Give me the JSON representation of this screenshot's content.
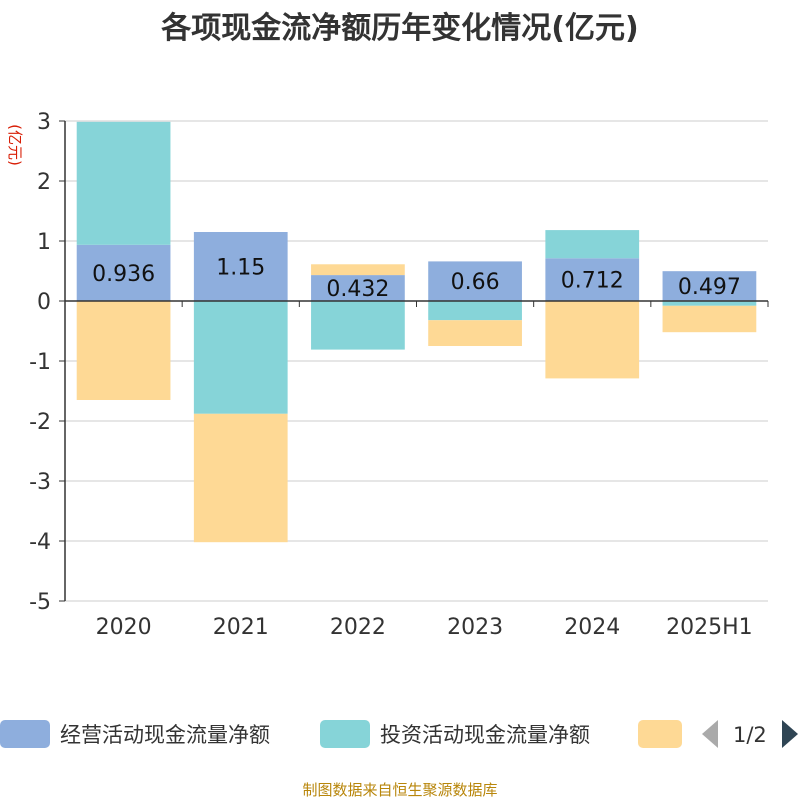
{
  "chart_data": {
    "type": "bar",
    "stacked": true,
    "title": "各项现金流净额历年变化情况(亿元)",
    "y_unit": "(亿元)",
    "categories": [
      "2020",
      "2021",
      "2022",
      "2023",
      "2024",
      "2025H1"
    ],
    "ylim": [
      -5,
      3
    ],
    "y_ticks": [
      3,
      2,
      1,
      0,
      -1,
      -2,
      -3,
      -4,
      -5
    ],
    "grid": true,
    "legend_position": "bottom",
    "series": [
      {
        "name": "经营活动现金流量净额",
        "color": "#8eaedd",
        "values": [
          0.936,
          1.15,
          0.432,
          0.66,
          0.712,
          0.497
        ],
        "labels": [
          "0.936",
          "1.15",
          "0.432",
          "0.66",
          "0.712",
          "0.497"
        ]
      },
      {
        "name": "投资活动现金流量净额",
        "color": "#86d4d8",
        "values": [
          2.05,
          -1.88,
          -0.81,
          -0.32,
          0.47,
          -0.08
        ]
      },
      {
        "name": "",
        "color": "#fed995",
        "values": [
          -1.65,
          -2.14,
          0.18,
          -0.43,
          -1.29,
          -0.44
        ]
      }
    ]
  },
  "legend": {
    "page_indicator": "1/2"
  },
  "source": "制图数据来自恒生聚源数据库",
  "colors": {
    "axis": "#333333",
    "grid": "#cccccc",
    "unit": "#d81e06",
    "source": "#b8860b",
    "arrow_active": "#2f4554",
    "arrow_inactive": "#aaaaaa"
  }
}
